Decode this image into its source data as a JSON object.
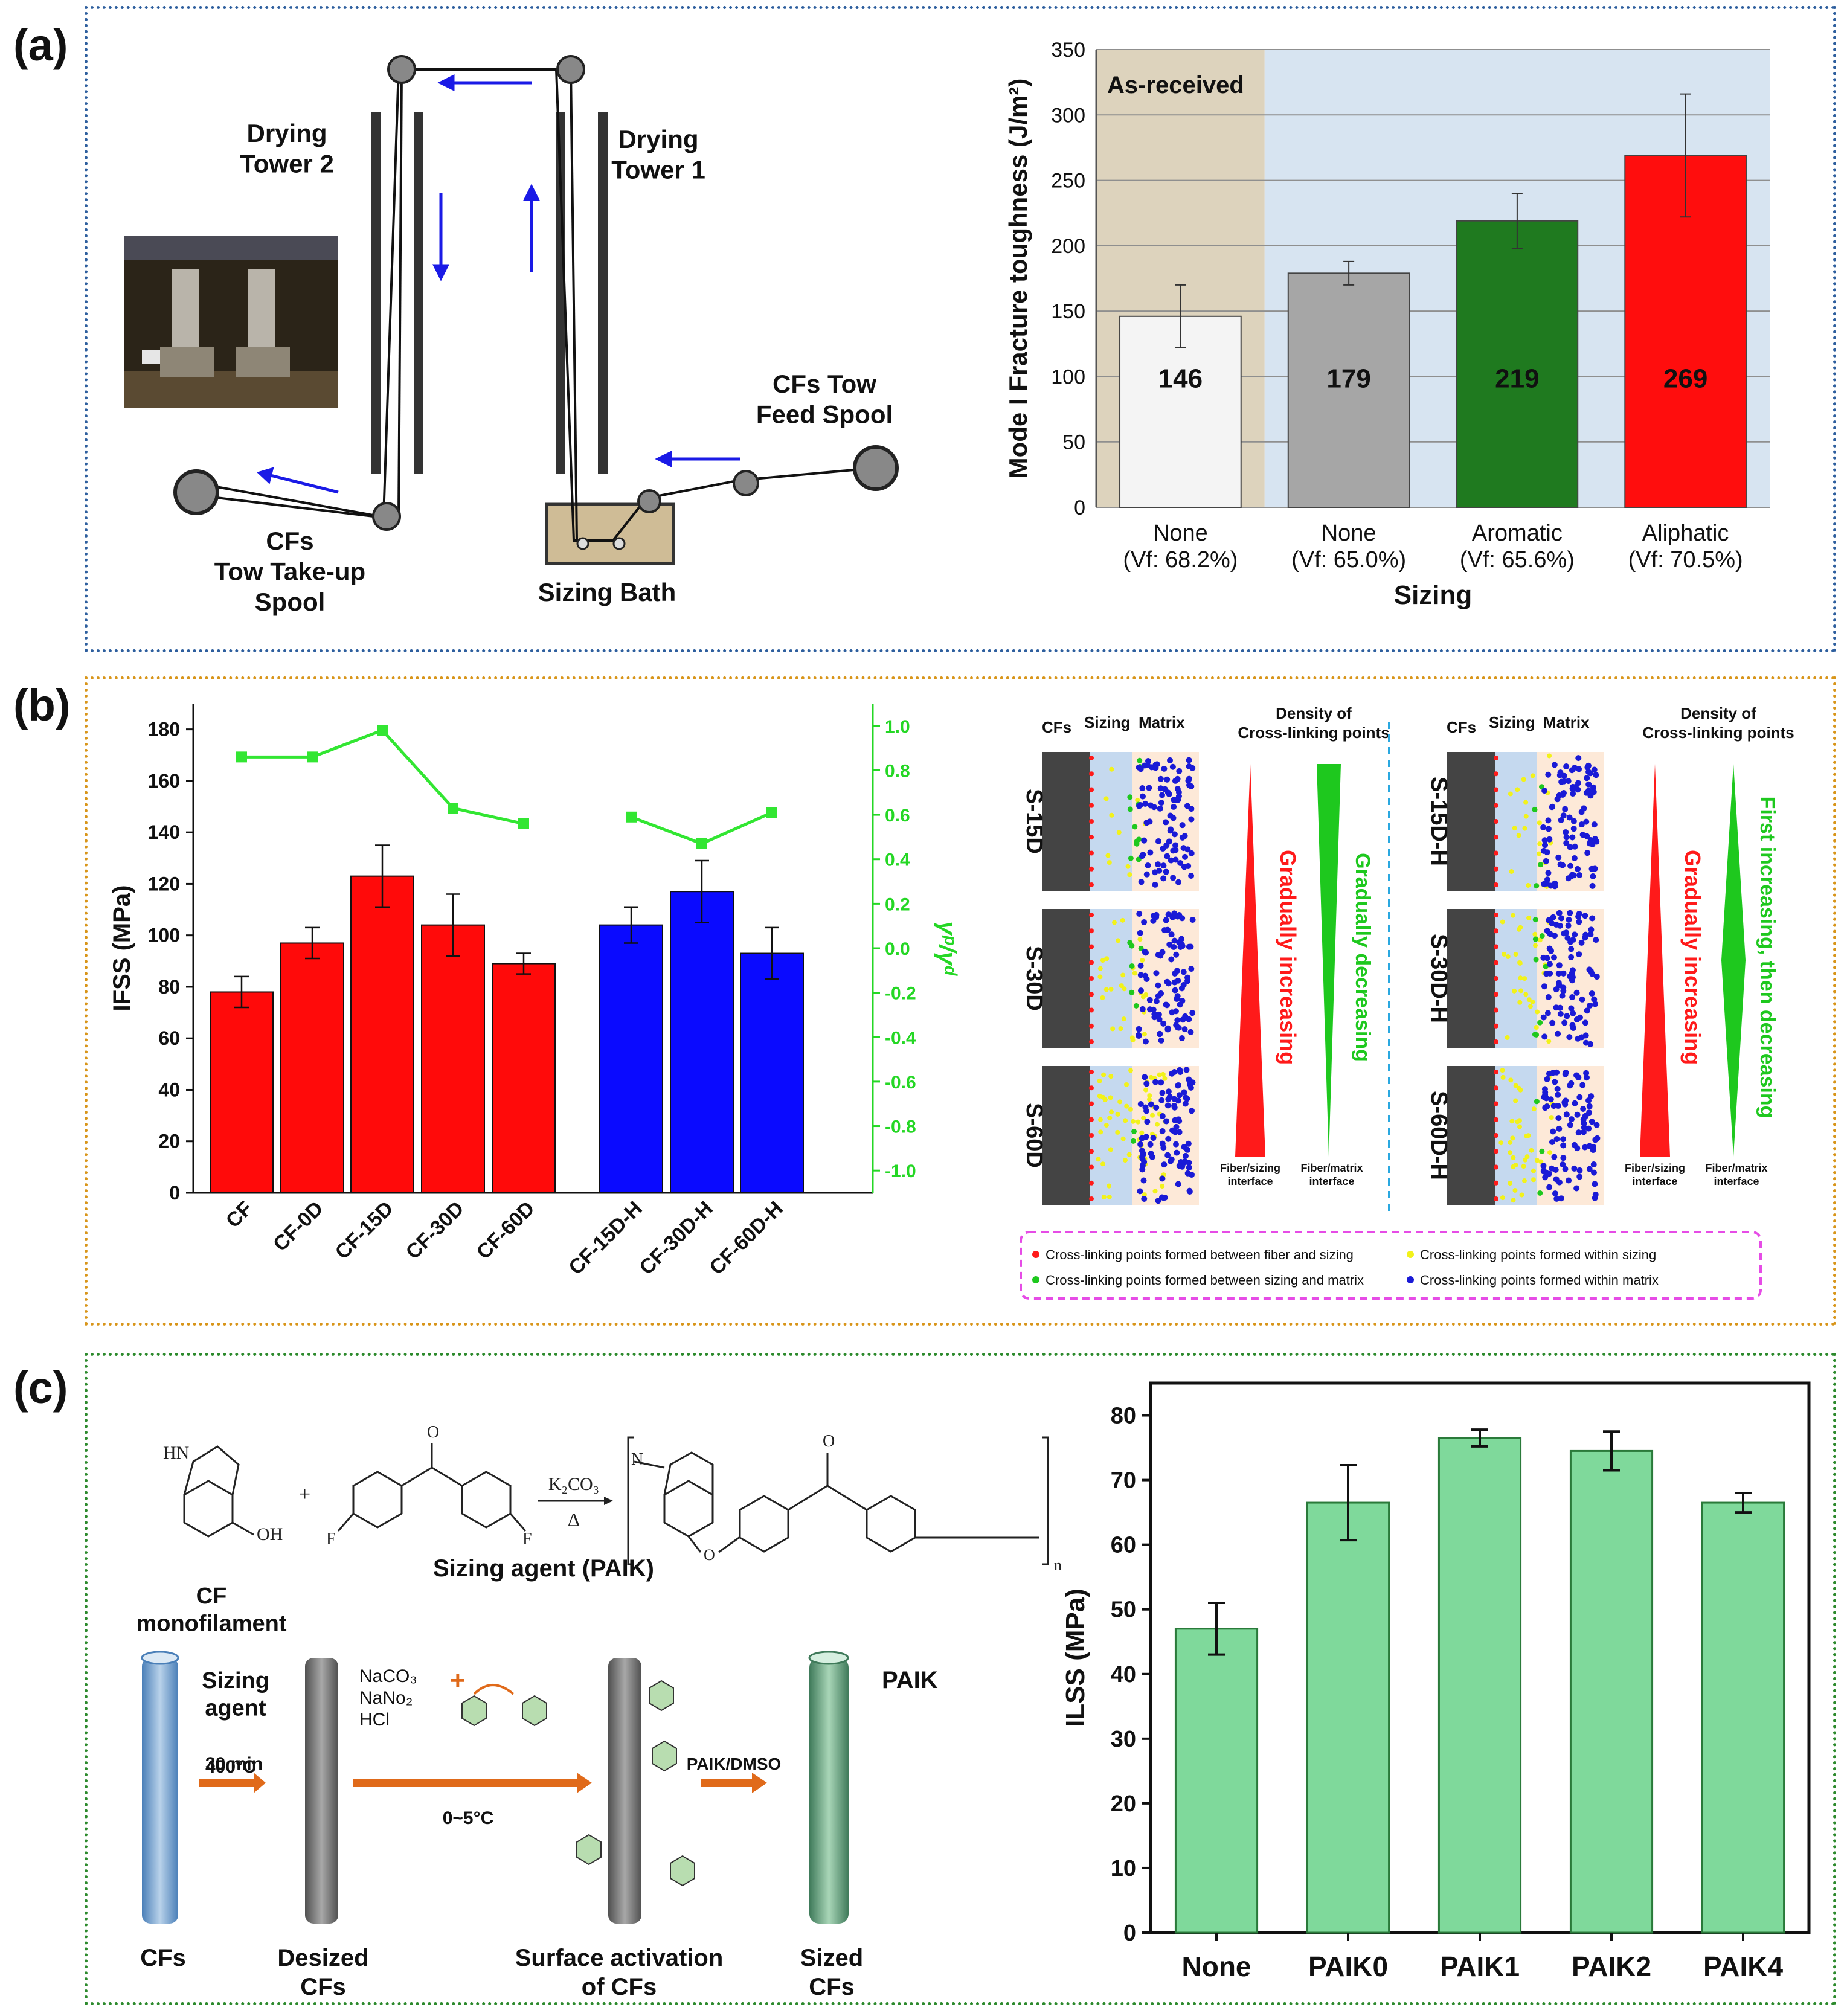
{
  "panel_labels": {
    "a": "(a)",
    "b": "(b)",
    "c": "(c)"
  },
  "panel_a": {
    "diagram": {
      "drying_tower_2": "Drying\nTower 2",
      "drying_tower_1": "Drying\nTower 1",
      "take_up": "CFs\nTow Take-up\nSpool",
      "feed": "CFs Tow\nFeed Spool",
      "sizing_bath": "Sizing Bath"
    }
  },
  "panel_b": {
    "schematic": {
      "header_cfs": "CFs",
      "header_sizing": "Sizing",
      "header_matrix": "Matrix",
      "density_title": "Density of\nCross-linking points",
      "left_samples": [
        "S-15D",
        "S-30D",
        "S-60D"
      ],
      "right_samples": [
        "S-15D-H",
        "S-30D-H",
        "S-60D-H"
      ],
      "left_red_label": "Gradually increasing",
      "left_green_label": "Gradually decreasing",
      "right_red_label": "Gradually increasing",
      "right_green_label": "First increasing, then decreasing",
      "fiber_sizing": "Fiber/sizing\ninterface",
      "fiber_matrix": "Fiber/matrix\ninterface",
      "legend": [
        {
          "label": "Cross-linking points formed between fiber and sizing",
          "color": "#ff1a1a"
        },
        {
          "label": "Cross-linking points formed within sizing",
          "color": "#f2f21a"
        },
        {
          "label": "Cross-linking points formed between sizing and matrix",
          "color": "#1ec81e"
        },
        {
          "label": "Cross-linking points formed within matrix",
          "color": "#1a1ad6"
        }
      ]
    }
  },
  "panel_c": {
    "scheme": {
      "reagent_top": "K₂CO₃",
      "reagent_bottom": "Δ",
      "sizing_agent": "Sizing agent (PAIK)",
      "cf_monofilament": "CF\nmonofilament",
      "sizing_agent_label": "Sizing\nagent",
      "step1_top": "400°C",
      "step1_bottom": "30 min",
      "reagents": "NaCO₃\nNaNo₂\nHCl",
      "step2_bottom": "0~5°C",
      "step3": "PAIK/DMSO",
      "paik": "PAIK",
      "stage1": "CFs",
      "stage2": "Desized\nCFs",
      "stage3": "Surface activation\nof CFs",
      "stage4": "Sized\nCFs",
      "hn": "HN",
      "oh": "OH",
      "f": "F",
      "o": "O",
      "n": "N",
      "n_sub": "n",
      "plus": "+"
    }
  },
  "chart_data": [
    {
      "type": "bar",
      "title": "",
      "xlabel": "Sizing",
      "ylabel": "Mode I Fracture toughness (J/m²)",
      "categories": [
        "None\n(Vf: 68.2%)",
        "None\n(Vf: 65.0%)",
        "Aromatic\n(Vf: 65.6%)",
        "Aliphatic\n(Vf: 70.5%)"
      ],
      "values": [
        146,
        179,
        219,
        269
      ],
      "errors": [
        24,
        9,
        21,
        47
      ],
      "bar_colors": [
        "#f4f4f4",
        "#a6a6a6",
        "#1f7a1f",
        "#ff0d0d"
      ],
      "data_labels": [
        "146",
        "179",
        "219",
        "269"
      ],
      "ylim": [
        0,
        350
      ],
      "yticks": [
        0,
        50,
        100,
        150,
        200,
        250,
        300,
        350
      ],
      "region_label": "As-received",
      "grid": true
    },
    {
      "type": "bar",
      "title": "",
      "xlabel": "",
      "ylabel": "IFSS (MPa)",
      "y2label": "γᵖ/γᵈ",
      "categories": [
        "CF",
        "CF-0D",
        "CF-15D",
        "CF-30D",
        "CF-60D",
        "CF-15D-H",
        "CF-30D-H",
        "CF-60D-H"
      ],
      "values": [
        78,
        97,
        123,
        104,
        89,
        104,
        117,
        93
      ],
      "errors": [
        6,
        6,
        12,
        12,
        4,
        7,
        12,
        10
      ],
      "series": [
        {
          "name": "IFSS",
          "values": [
            78,
            97,
            123,
            104,
            89,
            104,
            117,
            93
          ]
        },
        {
          "name": "γp/γd",
          "axis": "right",
          "groups": [
            [
              0,
              1,
              2,
              3,
              4
            ],
            [
              5,
              6,
              7
            ]
          ],
          "values": [
            0.86,
            0.86,
            0.98,
            0.63,
            0.56,
            0.59,
            0.47,
            0.61
          ]
        }
      ],
      "ylim": [
        0,
        190
      ],
      "yticks": [
        0,
        20,
        40,
        60,
        80,
        100,
        120,
        140,
        160,
        180
      ],
      "y2lim": [
        -1.1,
        1.1
      ],
      "y2ticks": [
        -1.0,
        -0.8,
        -0.6,
        -0.4,
        -0.2,
        0.0,
        0.2,
        0.4,
        0.6,
        0.8,
        1.0
      ]
    },
    {
      "type": "bar",
      "title": "",
      "xlabel": "",
      "ylabel": "ILSS (MPa)",
      "categories": [
        "None",
        "PAIK0",
        "PAIK1",
        "PAIK2",
        "PAIK4"
      ],
      "values": [
        47,
        66.5,
        76.5,
        74.5,
        66.5
      ],
      "errors": [
        4,
        5.8,
        1.3,
        3,
        1.5
      ],
      "ylim": [
        0,
        85
      ],
      "yticks": [
        0,
        10,
        20,
        30,
        40,
        50,
        60,
        70,
        80
      ]
    }
  ]
}
